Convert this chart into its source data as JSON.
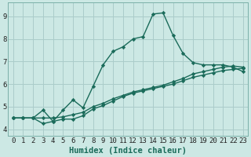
{
  "xlabel": "Humidex (Indice chaleur)",
  "background_color": "#cce8e4",
  "grid_color": "#aaccca",
  "line_color": "#1a6b5a",
  "xlim": [
    -0.5,
    23.5
  ],
  "ylim": [
    3.7,
    9.6
  ],
  "xticks": [
    0,
    1,
    2,
    3,
    4,
    5,
    6,
    7,
    8,
    9,
    10,
    11,
    12,
    13,
    14,
    15,
    16,
    17,
    18,
    19,
    20,
    21,
    22,
    23
  ],
  "yticks": [
    4,
    5,
    6,
    7,
    8,
    9
  ],
  "line1_x": [
    0,
    1,
    2,
    3,
    4,
    5,
    6,
    7,
    8,
    9,
    10,
    11,
    12,
    13,
    14,
    15,
    16,
    17,
    18,
    19,
    20,
    21,
    22,
    23
  ],
  "line1_y": [
    4.5,
    4.5,
    4.5,
    4.25,
    4.35,
    4.45,
    4.45,
    4.6,
    4.9,
    5.05,
    5.25,
    5.45,
    5.6,
    5.7,
    5.8,
    5.9,
    6.0,
    6.15,
    6.3,
    6.4,
    6.5,
    6.6,
    6.65,
    6.7
  ],
  "line2_x": [
    0,
    1,
    2,
    3,
    4,
    5,
    6,
    7,
    8,
    9,
    10,
    11,
    12,
    13,
    14,
    15,
    16,
    17,
    18,
    19,
    20,
    21,
    22,
    23
  ],
  "line2_y": [
    4.5,
    4.5,
    4.5,
    4.5,
    4.5,
    4.55,
    4.65,
    4.75,
    5.0,
    5.15,
    5.35,
    5.5,
    5.65,
    5.75,
    5.85,
    5.95,
    6.1,
    6.25,
    6.45,
    6.55,
    6.65,
    6.75,
    6.8,
    6.75
  ],
  "line3_x": [
    0,
    1,
    2,
    3,
    4,
    5,
    6,
    7,
    8,
    9,
    10,
    11,
    12,
    13,
    14,
    15,
    16,
    17,
    18,
    19,
    20,
    21,
    22,
    23
  ],
  "line3_y": [
    4.5,
    4.5,
    4.5,
    4.85,
    4.35,
    4.85,
    5.3,
    4.95,
    5.9,
    6.85,
    7.45,
    7.65,
    8.0,
    8.1,
    9.1,
    9.15,
    8.15,
    7.35,
    6.95,
    6.85,
    6.85,
    6.85,
    6.75,
    6.55
  ],
  "marker": "D",
  "marker_size": 2.2,
  "line_width": 1.0,
  "xlabel_fontsize": 7.5,
  "tick_fontsize": 6.5
}
